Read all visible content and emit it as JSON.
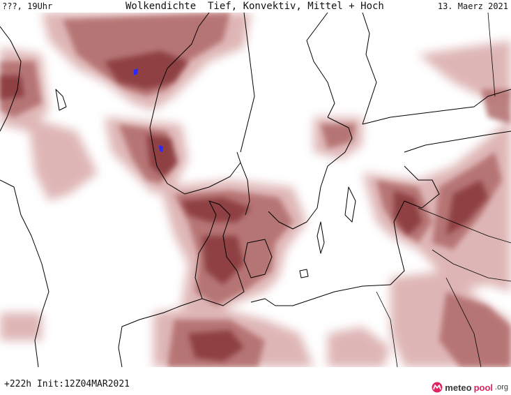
{
  "header": {
    "left": "???, 19Uhr",
    "title": "Wolkendichte  Tief, Konvektiv, Mittel + Hoch",
    "date": "13. Maerz 2021"
  },
  "footer": {
    "run": "+222h Init:12Z04MAR2021"
  },
  "logo": {
    "part1": "meteo",
    "part2": "pool",
    "part3": ".org",
    "icon": "meteopool-logo-icon"
  },
  "colors": {
    "cloud_dark": "#8a3a3c",
    "cloud_mid": "#b06a6a",
    "cloud_light": "#d9a9a9",
    "coast": "#000000",
    "precip": "#2a2aff"
  }
}
